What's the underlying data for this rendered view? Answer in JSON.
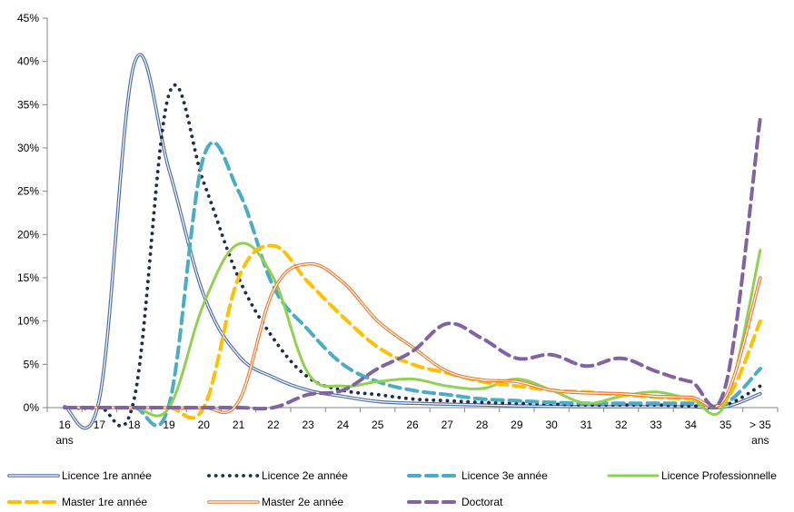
{
  "chart_data": {
    "type": "line",
    "categories": [
      "16 ans",
      "17",
      "18",
      "19",
      "20",
      "21",
      "22",
      "23",
      "24",
      "25",
      "26",
      "27",
      "28",
      "29",
      "30",
      "31",
      "32",
      "33",
      "34",
      "35",
      "> 35 ans"
    ],
    "tick_labels": [
      [
        "16",
        "ans"
      ],
      [
        "17"
      ],
      [
        "18"
      ],
      [
        "19"
      ],
      [
        "20"
      ],
      [
        "21"
      ],
      [
        "22"
      ],
      [
        "23"
      ],
      [
        "24"
      ],
      [
        "25"
      ],
      [
        "26"
      ],
      [
        "27"
      ],
      [
        "28"
      ],
      [
        "29"
      ],
      [
        "30"
      ],
      [
        "31"
      ],
      [
        "32"
      ],
      [
        "33"
      ],
      [
        "34"
      ],
      [
        "35"
      ],
      [
        "> 35",
        "ans"
      ]
    ],
    "ylim": [
      0,
      45
    ],
    "yticks": [
      0,
      5,
      10,
      15,
      20,
      25,
      30,
      35,
      40,
      45
    ],
    "ytick_labels": [
      "0%",
      "5%",
      "10%",
      "15%",
      "20%",
      "25%",
      "30%",
      "35%",
      "40%",
      "45%"
    ],
    "grid": false,
    "legend_position": "bottom",
    "series": [
      {
        "name": "Licence 1re année",
        "color": "#4f6fa8",
        "style": "double",
        "values": [
          0.1,
          1.0,
          39.7,
          27.5,
          13.0,
          6.0,
          3.5,
          2.0,
          1.3,
          0.7,
          0.5,
          0.4,
          0.3,
          0.2,
          0.15,
          0.1,
          0.1,
          0.1,
          0.1,
          0.1,
          1.6
        ]
      },
      {
        "name": "Licence 2e année",
        "color": "#1f2d4a",
        "style": "dotted",
        "values": [
          0.0,
          0.0,
          1.0,
          36.2,
          26.0,
          15.0,
          8.0,
          3.5,
          2.0,
          1.5,
          1.0,
          0.8,
          0.6,
          0.5,
          0.4,
          0.3,
          0.3,
          0.3,
          0.2,
          0.3,
          2.5
        ]
      },
      {
        "name": "Licence 3e année",
        "color": "#4bacc6",
        "style": "dashed",
        "values": [
          0.0,
          0.0,
          0.0,
          0.3,
          29.0,
          25.0,
          14.0,
          9.0,
          5.0,
          3.0,
          2.0,
          1.5,
          1.0,
          0.8,
          0.6,
          0.5,
          0.5,
          0.5,
          0.5,
          0.5,
          4.5
        ]
      },
      {
        "name": "Licence Professionnelle",
        "color": "#92d050",
        "style": "solid",
        "values": [
          0.0,
          0.0,
          0.0,
          0.0,
          12.0,
          18.9,
          15.0,
          4.0,
          2.5,
          3.0,
          3.3,
          2.5,
          2.2,
          3.3,
          2.0,
          0.5,
          1.3,
          1.8,
          1.0,
          0.5,
          18.2
        ]
      },
      {
        "name": "Master 1re année",
        "color": "#ffc000",
        "style": "dashed",
        "values": [
          0.0,
          0.0,
          0.0,
          0.0,
          0.0,
          15.0,
          18.7,
          14.5,
          10.5,
          7.0,
          5.0,
          4.0,
          3.0,
          2.5,
          2.0,
          1.8,
          1.5,
          1.2,
          1.0,
          0.8,
          10.0
        ]
      },
      {
        "name": "Master 2e année",
        "color": "#ed7d31",
        "style": "double",
        "values": [
          0.0,
          0.0,
          0.0,
          0.0,
          0.0,
          0.7,
          13.5,
          16.6,
          14.5,
          10.0,
          7.0,
          4.2,
          3.2,
          3.0,
          2.0,
          1.7,
          1.6,
          1.3,
          1.2,
          1.2,
          15.0
        ]
      },
      {
        "name": "Doctorat",
        "color": "#8064a2",
        "style": "dashed",
        "values": [
          0.0,
          0.0,
          0.0,
          0.0,
          0.0,
          0.0,
          0.0,
          1.5,
          2.0,
          4.5,
          6.5,
          9.7,
          8.0,
          5.7,
          6.1,
          4.8,
          5.7,
          4.2,
          3.0,
          2.5,
          33.5
        ]
      }
    ]
  }
}
